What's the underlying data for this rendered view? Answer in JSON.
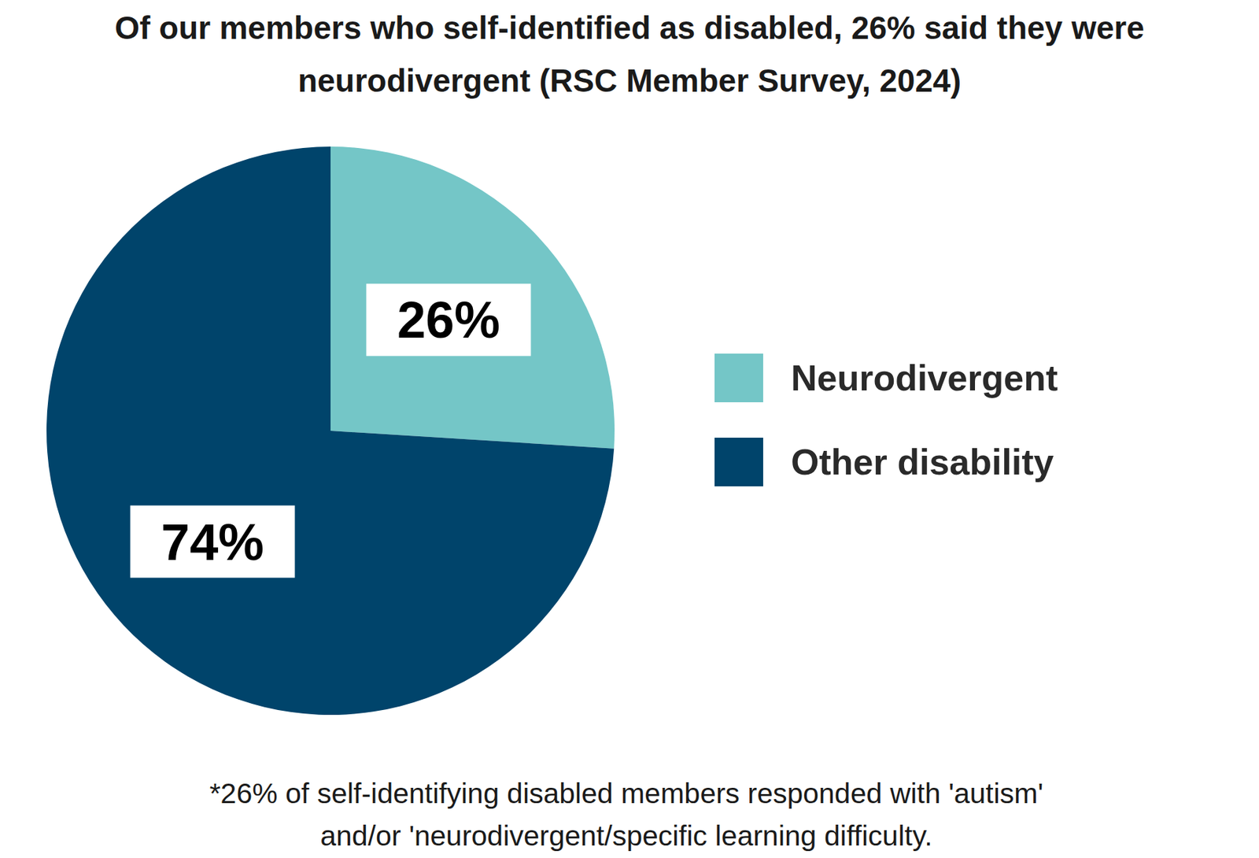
{
  "chart_data": {
    "type": "pie",
    "title": "Of our members who self-identified as disabled, 26% said they were neurodivergent (RSC Member Survey, 2024)",
    "categories": [
      "Neurodivergent",
      "Other disability"
    ],
    "values": [
      26,
      74
    ],
    "value_labels": [
      "26%",
      "74%"
    ],
    "colors": [
      "#74c6c7",
      "#00446b"
    ],
    "data_labels": true,
    "legend": "right",
    "annotation": "*26% of self-identifying disabled members responded with 'autism' and/or 'neurodivergent/specific learning difficulty."
  }
}
